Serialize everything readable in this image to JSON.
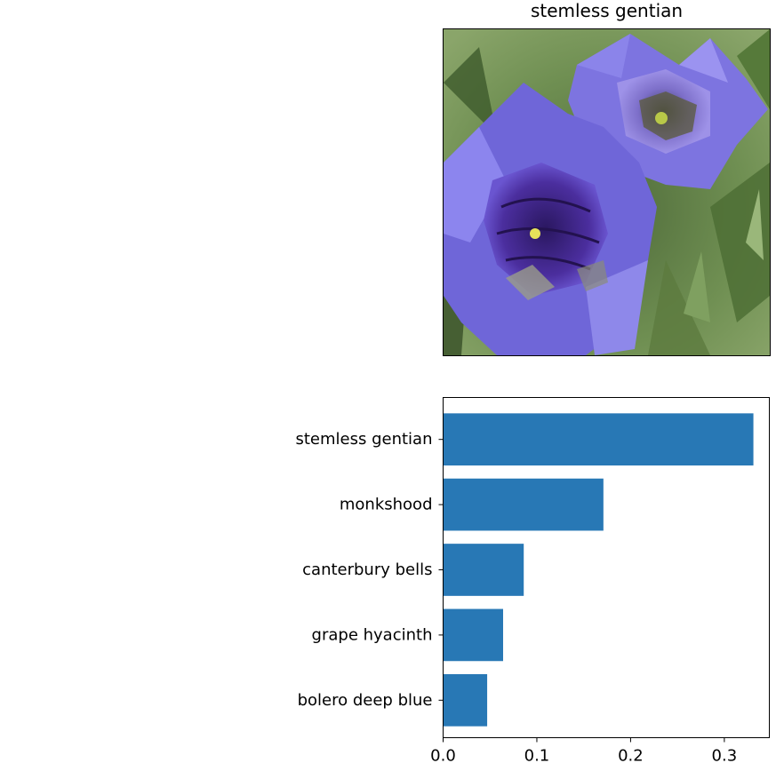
{
  "image_panel": {
    "title": "stemless gentian",
    "photo_subject": "blue gentian flowers photo"
  },
  "colors": {
    "bar": "#2878b5",
    "axis": "#000000",
    "background": "#ffffff"
  },
  "chart_data": {
    "type": "bar",
    "orientation": "horizontal",
    "title": "",
    "xlabel": "",
    "ylabel": "",
    "categories": [
      "stemless gentian",
      "monkshood",
      "canterbury bells",
      "grape hyacinth",
      "bolero deep blue"
    ],
    "values": [
      0.331,
      0.171,
      0.086,
      0.064,
      0.047
    ],
    "xlim": [
      0.0,
      0.348
    ],
    "xticks": [
      0.0,
      0.1,
      0.2,
      0.3
    ],
    "xtick_labels": [
      "0.0",
      "0.1",
      "0.2",
      "0.3"
    ],
    "grid": false,
    "legend": "none"
  }
}
